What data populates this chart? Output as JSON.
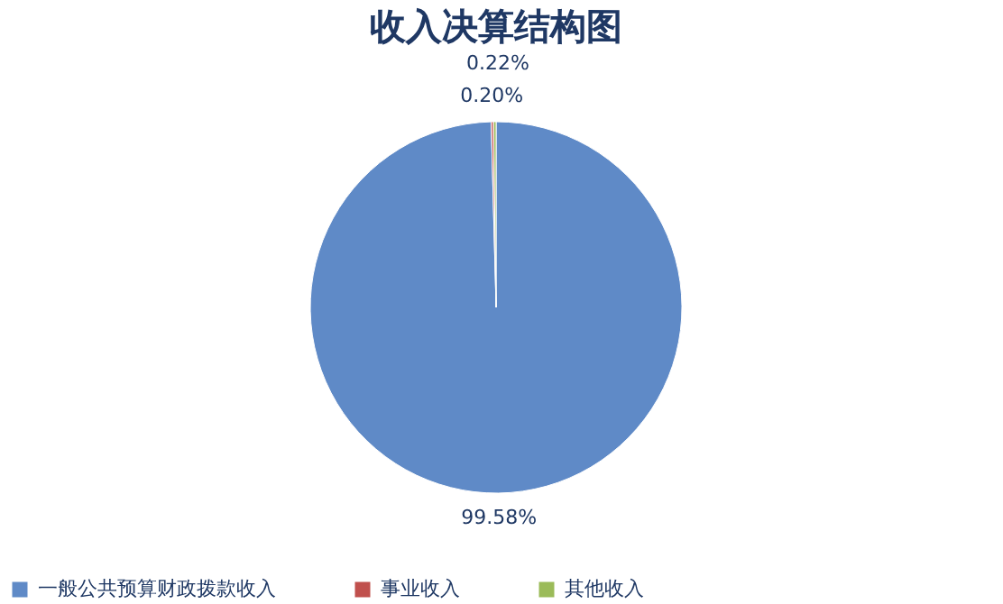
{
  "chart_data": {
    "type": "pie",
    "title": "收入决算结构图",
    "categories": [
      "一般公共预算财政拨款收入",
      "事业收入",
      "其他收入"
    ],
    "values": [
      99.58,
      0.2,
      0.22
    ],
    "colors": [
      "#5f8ac7",
      "#c0504d",
      "#9bbb59"
    ],
    "value_labels": [
      "99.58%",
      "0.20%",
      "0.22%"
    ],
    "legend": "bottom"
  }
}
